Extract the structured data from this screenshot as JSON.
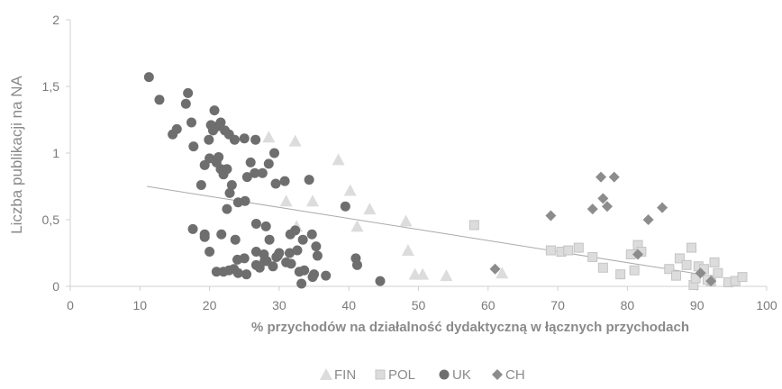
{
  "chart_data": {
    "type": "scatter",
    "xlabel": "% przychodów na działalność dydaktyczną w łącznych przychodach",
    "ylabel": "Liczba publikacji na NA",
    "xlim": [
      0,
      100
    ],
    "ylim": [
      0,
      2
    ],
    "x_ticks": [
      "0",
      "10",
      "20",
      "30",
      "40",
      "50",
      "60",
      "70",
      "80",
      "90",
      "100"
    ],
    "y_ticks": [
      "0",
      "0,5",
      "1",
      "1,5",
      "2"
    ],
    "grid": false,
    "legend_position": "bottom",
    "trendline": {
      "type": "linear",
      "from": [
        11,
        0.75
      ],
      "to": [
        93,
        0.07
      ],
      "color": "#aaaaaa"
    },
    "series": [
      {
        "name": "FIN",
        "marker": "triangle",
        "color": "#dcdcdc",
        "x": [
          28.5,
          32.3,
          31,
          32.5,
          34.8,
          38.5,
          40.2,
          41.2,
          43,
          48.2,
          48.5,
          49.5,
          50.6,
          54,
          62
        ],
        "y": [
          1.12,
          1.09,
          0.64,
          0.45,
          0.64,
          0.95,
          0.72,
          0.45,
          0.58,
          0.49,
          0.27,
          0.09,
          0.09,
          0.08,
          0.1
        ]
      },
      {
        "name": "POL",
        "marker": "square",
        "color": "#dcdcdc",
        "x": [
          58,
          69,
          70.5,
          71.5,
          73,
          75,
          76.5,
          79,
          80.5,
          81,
          81.5,
          82,
          86,
          87,
          87.5,
          88.5,
          89.2,
          89.5,
          90.2,
          91,
          92,
          92.5,
          93,
          94.5,
          95.5,
          96.5,
          89.8,
          91.5
        ],
        "y": [
          0.46,
          0.27,
          0.26,
          0.27,
          0.29,
          0.22,
          0.14,
          0.09,
          0.24,
          0.12,
          0.31,
          0.26,
          0.13,
          0.08,
          0.21,
          0.16,
          0.29,
          0.01,
          0.15,
          0.13,
          0.04,
          0.18,
          0.1,
          0.03,
          0.04,
          0.07,
          0.06,
          0.05
        ]
      },
      {
        "name": "UK",
        "marker": "circle",
        "color": "#6e6e6e",
        "x": [
          11.3,
          12.8,
          14.7,
          15.3,
          16.6,
          16.9,
          17.4,
          17.7,
          18.8,
          19.3,
          19.9,
          20.2,
          20.7,
          21.1,
          21.6,
          22.2,
          22.8,
          23.6,
          25.0,
          26.6,
          29.3,
          20.5,
          21.3,
          22.5,
          23.2,
          25.9,
          27.6,
          28.5,
          30.8,
          21.0,
          21.6,
          22.0,
          22.9,
          24.1,
          25.4,
          26.5,
          29.5,
          34.3,
          20.0,
          22.5,
          25.1,
          26.7,
          28.1,
          31.6,
          19.3,
          21.7,
          23.7,
          26.7,
          28.6,
          32.3,
          34.7,
          39.5,
          17.6,
          19.3,
          20.0,
          25.0,
          27.8,
          29.6,
          31.5,
          33.4,
          35.3,
          41.0,
          21.0,
          22.8,
          24.1,
          26.7,
          28.2,
          30.0,
          31.7,
          33.6,
          35.5,
          22.0,
          23.5,
          25.3,
          27.2,
          29.1,
          31.0,
          32.9,
          34.8,
          36.7,
          41.2,
          44.5,
          24.0,
          27.9,
          29.8,
          32.6,
          35.0,
          33.2
        ],
        "y": [
          1.57,
          1.4,
          1.14,
          1.18,
          1.37,
          1.45,
          1.23,
          1.05,
          0.76,
          0.91,
          1.1,
          1.21,
          1.32,
          1.2,
          1.23,
          1.17,
          1.14,
          1.1,
          1.11,
          1.1,
          1.0,
          1.17,
          0.97,
          0.88,
          0.76,
          0.93,
          0.85,
          0.92,
          0.79,
          0.93,
          0.88,
          0.84,
          0.7,
          0.63,
          0.82,
          0.85,
          0.77,
          0.8,
          0.96,
          0.58,
          0.64,
          0.47,
          0.45,
          0.39,
          0.39,
          0.39,
          0.35,
          0.26,
          0.35,
          0.42,
          0.39,
          0.6,
          0.43,
          0.37,
          0.26,
          0.21,
          0.24,
          0.22,
          0.25,
          0.35,
          0.3,
          0.21,
          0.11,
          0.12,
          0.1,
          0.16,
          0.19,
          0.25,
          0.17,
          0.12,
          0.23,
          0.11,
          0.13,
          0.09,
          0.14,
          0.15,
          0.18,
          0.11,
          0.07,
          0.08,
          0.16,
          0.04,
          0.2,
          0.19,
          0.23,
          0.27,
          0.09,
          0.02
        ]
      },
      {
        "name": "CH",
        "marker": "diamond",
        "color": "#8c8c8c",
        "x": [
          61,
          69,
          75,
          76.2,
          76.5,
          77.1,
          78.1,
          83,
          85,
          90.5,
          81.5,
          92
        ],
        "y": [
          0.13,
          0.53,
          0.58,
          0.82,
          0.66,
          0.6,
          0.82,
          0.5,
          0.59,
          0.1,
          0.24,
          0.04
        ]
      }
    ]
  }
}
